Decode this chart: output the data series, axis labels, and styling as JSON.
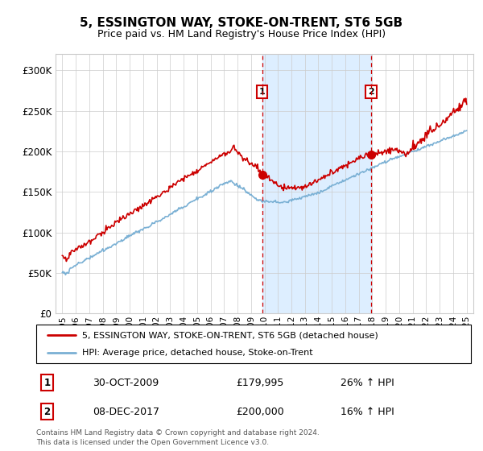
{
  "title": "5, ESSINGTON WAY, STOKE-ON-TRENT, ST6 5GB",
  "subtitle": "Price paid vs. HM Land Registry's House Price Index (HPI)",
  "legend_line1": "5, ESSINGTON WAY, STOKE-ON-TRENT, ST6 5GB (detached house)",
  "legend_line2": "HPI: Average price, detached house, Stoke-on-Trent",
  "transaction1_date": "30-OCT-2009",
  "transaction1_price": "£179,995",
  "transaction1_hpi": "26% ↑ HPI",
  "transaction2_date": "08-DEC-2017",
  "transaction2_price": "£200,000",
  "transaction2_hpi": "16% ↑ HPI",
  "footer": "Contains HM Land Registry data © Crown copyright and database right 2024.\nThis data is licensed under the Open Government Licence v3.0.",
  "red_color": "#cc0000",
  "blue_color": "#7ab0d4",
  "shade_color": "#ddeeff",
  "transaction1_x": 2009.83,
  "transaction2_x": 2017.92,
  "ylim_min": 0,
  "ylim_max": 320000,
  "xlim_min": 1994.5,
  "xlim_max": 2025.5
}
